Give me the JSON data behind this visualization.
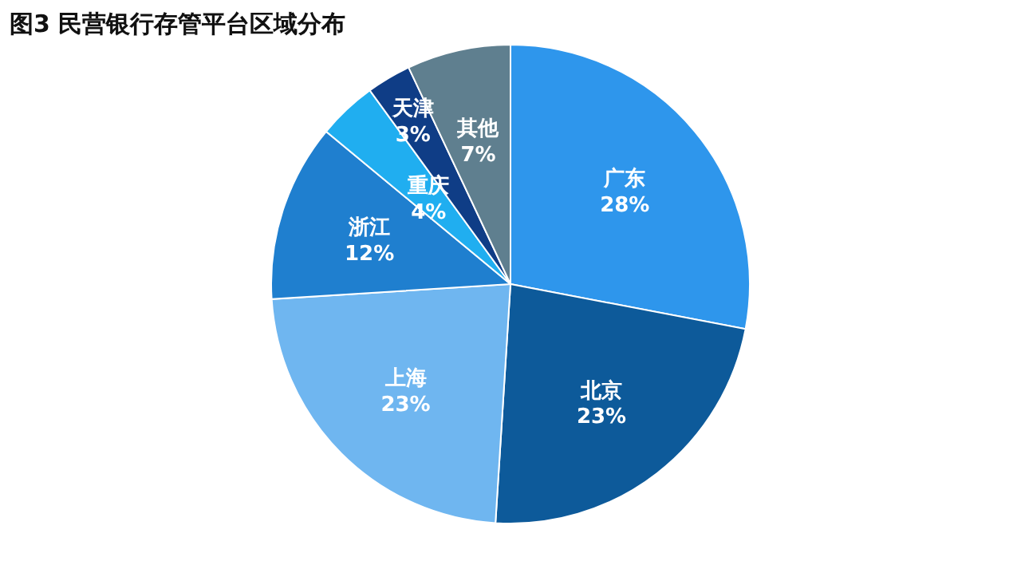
{
  "chart_data": {
    "type": "pie",
    "title": "图3 民营银行存管平台区域分布",
    "categories": [
      "广东",
      "北京",
      "上海",
      "浙江",
      "重庆",
      "天津",
      "其他"
    ],
    "values": [
      28,
      23,
      23,
      12,
      4,
      3,
      7
    ],
    "value_labels": [
      "28%",
      "23%",
      "23%",
      "12%",
      "4%",
      "3%",
      "7%"
    ],
    "colors": [
      "#2e96ec",
      "#0d5a9a",
      "#6fb6f0",
      "#1f7fcf",
      "#20aef0",
      "#0f3d86",
      "#5f7f8f"
    ],
    "legend": false
  }
}
